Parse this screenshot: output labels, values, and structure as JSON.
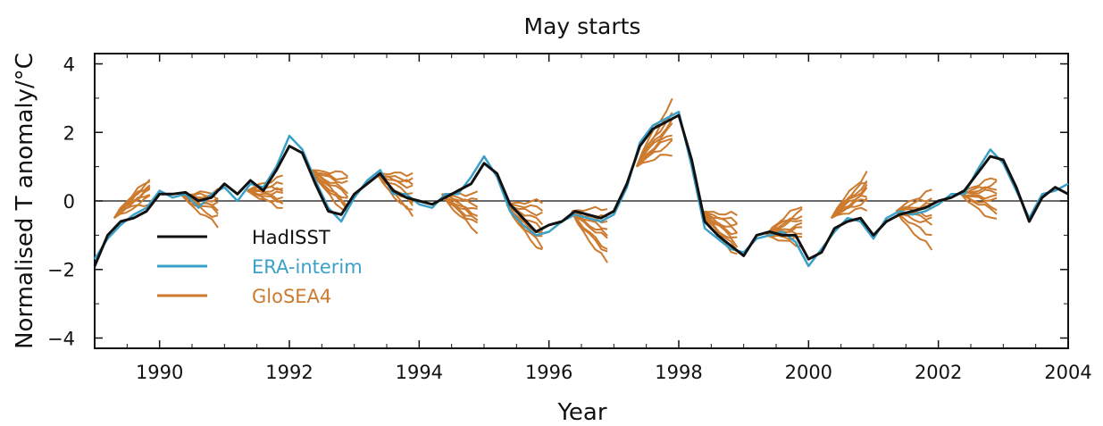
{
  "chart_data": {
    "type": "line",
    "title": "May starts",
    "xlabel": "Year",
    "ylabel": "Normalised T anomaly/°C",
    "xlim": [
      1989,
      2004
    ],
    "ylim": [
      -4.3,
      4.3
    ],
    "xticks": [
      1990,
      1992,
      1994,
      1996,
      1998,
      2000,
      2002,
      2004
    ],
    "yticks": [
      -4,
      -2,
      0,
      2,
      4
    ],
    "ytick_labels": [
      "−4",
      "−2",
      "0",
      "2",
      "4"
    ],
    "zero_line": true,
    "grid": false,
    "legend": "lower-left",
    "colors": {
      "HadISST": "#111111",
      "ERA-interim": "#3aa0c8",
      "GloSEA4": "#cc7a2e"
    },
    "series": [
      {
        "name": "HadISST",
        "x": [
          1989.0,
          1989.2,
          1989.4,
          1989.6,
          1989.8,
          1990.0,
          1990.2,
          1990.4,
          1990.6,
          1990.8,
          1991.0,
          1991.2,
          1991.4,
          1991.6,
          1991.8,
          1992.0,
          1992.2,
          1992.4,
          1992.6,
          1992.8,
          1993.0,
          1993.2,
          1993.4,
          1993.6,
          1993.8,
          1994.0,
          1994.2,
          1994.4,
          1994.6,
          1994.8,
          1995.0,
          1995.2,
          1995.4,
          1995.6,
          1995.8,
          1996.0,
          1996.2,
          1996.4,
          1996.6,
          1996.8,
          1997.0,
          1997.2,
          1997.4,
          1997.6,
          1997.8,
          1998.0,
          1998.2,
          1998.4,
          1998.6,
          1998.8,
          1999.0,
          1999.2,
          1999.4,
          1999.6,
          1999.8,
          2000.0,
          2000.2,
          2000.4,
          2000.6,
          2000.8,
          2001.0,
          2001.2,
          2001.4,
          2001.6,
          2001.8,
          2002.0,
          2002.2,
          2002.4,
          2002.6,
          2002.8,
          2003.0,
          2003.2,
          2003.4,
          2003.6,
          2003.8,
          2004.0
        ],
        "y": [
          -1.9,
          -1.0,
          -0.6,
          -0.5,
          -0.3,
          0.2,
          0.2,
          0.25,
          0.0,
          0.1,
          0.5,
          0.2,
          0.6,
          0.3,
          0.9,
          1.6,
          1.4,
          0.5,
          -0.3,
          -0.4,
          0.2,
          0.5,
          0.8,
          0.3,
          0.1,
          0.0,
          -0.1,
          0.1,
          0.3,
          0.5,
          1.1,
          0.8,
          -0.1,
          -0.5,
          -0.9,
          -0.7,
          -0.6,
          -0.3,
          -0.4,
          -0.5,
          -0.3,
          0.5,
          1.6,
          2.1,
          2.3,
          2.5,
          1.2,
          -0.6,
          -1.0,
          -1.3,
          -1.6,
          -1.0,
          -0.9,
          -1.0,
          -1.0,
          -1.7,
          -1.5,
          -0.8,
          -0.6,
          -0.5,
          -1.0,
          -0.6,
          -0.4,
          -0.3,
          -0.2,
          0.0,
          0.1,
          0.3,
          0.8,
          1.3,
          1.2,
          0.4,
          -0.6,
          0.1,
          0.4,
          0.2
        ]
      },
      {
        "name": "ERA-interim",
        "x": [
          1989.0,
          1989.2,
          1989.4,
          1989.6,
          1989.8,
          1990.0,
          1990.2,
          1990.4,
          1990.6,
          1990.8,
          1991.0,
          1991.2,
          1991.4,
          1991.6,
          1991.8,
          1992.0,
          1992.2,
          1992.4,
          1992.6,
          1992.8,
          1993.0,
          1993.2,
          1993.4,
          1993.6,
          1993.8,
          1994.0,
          1994.2,
          1994.4,
          1994.6,
          1994.8,
          1995.0,
          1995.2,
          1995.4,
          1995.6,
          1995.8,
          1996.0,
          1996.2,
          1996.4,
          1996.6,
          1996.8,
          1997.0,
          1997.2,
          1997.4,
          1997.6,
          1997.8,
          1998.0,
          1998.2,
          1998.4,
          1998.6,
          1998.8,
          1999.0,
          1999.2,
          1999.4,
          1999.6,
          1999.8,
          2000.0,
          2000.2,
          2000.4,
          2000.6,
          2000.8,
          2001.0,
          2001.2,
          2001.4,
          2001.6,
          2001.8,
          2002.0,
          2002.2,
          2002.4,
          2002.6,
          2002.8,
          2003.0,
          2003.2,
          2003.4,
          2003.6,
          2003.8,
          2004.0
        ],
        "y": [
          -1.7,
          -1.1,
          -0.7,
          -0.4,
          -0.2,
          0.3,
          0.1,
          0.2,
          -0.2,
          0.2,
          0.4,
          0.0,
          0.5,
          0.4,
          1.0,
          1.9,
          1.5,
          0.6,
          -0.2,
          -0.6,
          0.1,
          0.6,
          0.9,
          0.2,
          0.2,
          -0.1,
          -0.2,
          0.2,
          0.2,
          0.7,
          1.3,
          0.7,
          -0.3,
          -0.7,
          -1.0,
          -0.9,
          -0.6,
          -0.4,
          -0.5,
          -0.6,
          -0.4,
          0.4,
          1.7,
          2.2,
          2.4,
          2.6,
          1.0,
          -0.8,
          -1.1,
          -1.4,
          -1.5,
          -1.1,
          -1.0,
          -0.9,
          -1.2,
          -1.9,
          -1.4,
          -0.9,
          -0.5,
          -0.6,
          -1.1,
          -0.5,
          -0.3,
          -0.4,
          -0.3,
          -0.1,
          0.2,
          0.2,
          0.9,
          1.5,
          1.1,
          0.3,
          -0.5,
          0.2,
          0.3,
          0.5
        ]
      },
      {
        "name": "GloSEA4",
        "x": [],
        "y": []
      }
    ],
    "ensemble_ranges": [
      {
        "start": 1989.3,
        "y0": -0.5,
        "ends": [
          0.65,
          0.55,
          0.45,
          0.35,
          0.25,
          0.1,
          -0.05,
          0.3,
          0.5
        ]
      },
      {
        "start": 1990.35,
        "y0": 0.15,
        "ends": [
          0.3,
          0.1,
          -0.1,
          -0.3,
          -0.5,
          -0.7,
          0.0,
          -0.2,
          0.2
        ]
      },
      {
        "start": 1991.35,
        "y0": 0.3,
        "ends": [
          0.7,
          0.4,
          0.2,
          0.0,
          -0.1,
          -0.2,
          0.5,
          0.1,
          0.3
        ]
      },
      {
        "start": 1992.35,
        "y0": 0.9,
        "ends": [
          0.8,
          0.5,
          0.2,
          0.0,
          -0.2,
          -0.4,
          0.3,
          0.6,
          -0.1
        ]
      },
      {
        "start": 1993.35,
        "y0": 0.8,
        "ends": [
          0.8,
          0.5,
          0.2,
          -0.1,
          -0.3,
          -0.4,
          0.4,
          0.0,
          0.6
        ]
      },
      {
        "start": 1994.35,
        "y0": 0.2,
        "ends": [
          0.2,
          -0.1,
          -0.3,
          -0.5,
          -0.7,
          -0.9,
          0.0,
          -0.4,
          -0.6
        ]
      },
      {
        "start": 1995.35,
        "y0": -0.1,
        "ends": [
          0.0,
          -0.4,
          -0.8,
          -1.1,
          -1.3,
          -1.5,
          -0.6,
          -1.0,
          -0.2
        ]
      },
      {
        "start": 1996.35,
        "y0": -0.3,
        "ends": [
          -0.2,
          -0.5,
          -0.8,
          -1.1,
          -1.4,
          -1.8,
          -0.6,
          -1.0,
          -1.5
        ]
      },
      {
        "start": 1997.35,
        "y0": 1.0,
        "ends": [
          2.9,
          2.6,
          2.3,
          2.0,
          1.7,
          1.4,
          2.5,
          1.9,
          2.2
        ]
      },
      {
        "start": 1998.35,
        "y0": -0.3,
        "ends": [
          -0.4,
          -0.7,
          -0.9,
          -1.1,
          -1.3,
          -1.6,
          -0.6,
          -1.0,
          -1.4
        ]
      },
      {
        "start": 1999.35,
        "y0": -1.0,
        "ends": [
          -0.1,
          -0.3,
          -0.5,
          -0.7,
          -0.9,
          -1.1,
          -0.4,
          -0.8,
          -1.3
        ]
      },
      {
        "start": 2000.35,
        "y0": -0.5,
        "ends": [
          0.8,
          0.6,
          0.4,
          0.2,
          0.0,
          -0.2,
          0.5,
          0.1,
          0.3
        ]
      },
      {
        "start": 2001.35,
        "y0": -0.3,
        "ends": [
          0.3,
          0.1,
          -0.1,
          -0.4,
          -0.7,
          -1.0,
          -0.2,
          -0.5,
          -1.4
        ]
      },
      {
        "start": 2002.35,
        "y0": 0.2,
        "ends": [
          0.7,
          0.5,
          0.3,
          0.0,
          -0.3,
          -0.6,
          0.4,
          0.1,
          -0.2
        ]
      }
    ]
  }
}
